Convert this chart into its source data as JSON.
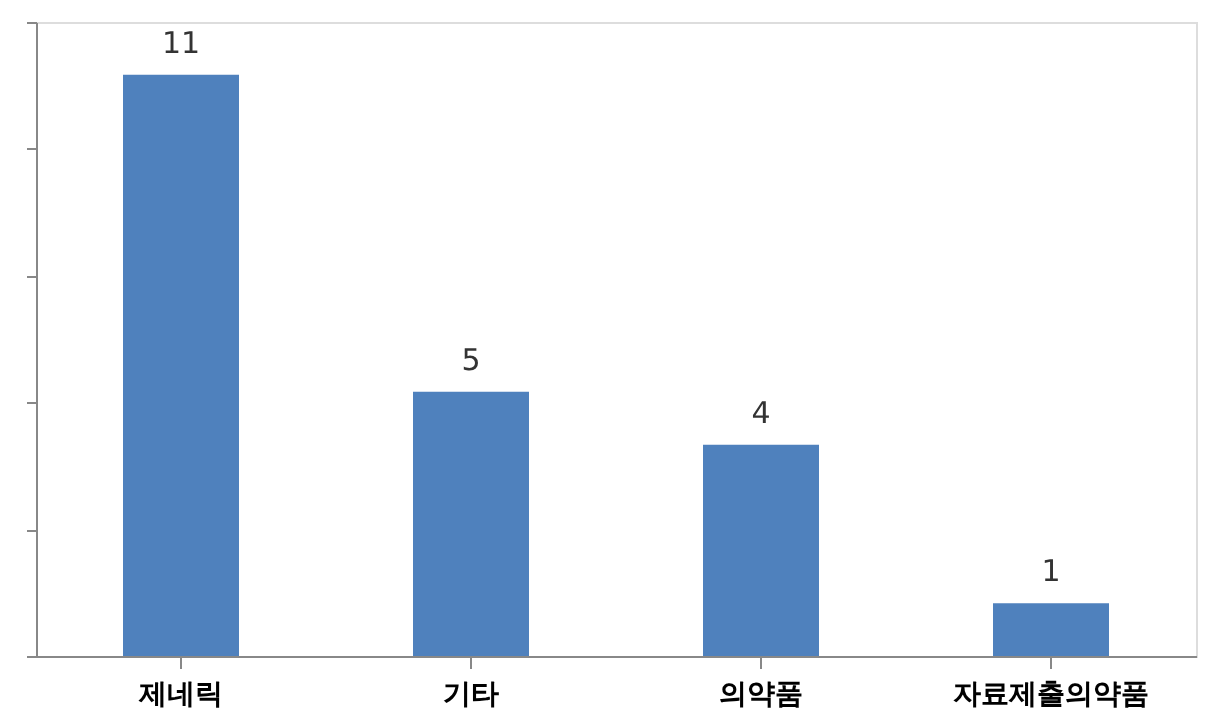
{
  "chart_data": {
    "type": "bar",
    "categories": [
      "제네릭",
      "기타",
      "의약품",
      "자료제출의약품"
    ],
    "values": [
      11,
      5,
      4,
      1
    ],
    "color": "#4f81bd",
    "data_labels": true,
    "ylim": [
      0,
      12
    ],
    "yticks": [
      {
        "value": 0,
        "label": null
      },
      {
        "value": 2.4,
        "label": null
      },
      {
        "value": 4.8,
        "label": null
      },
      {
        "value": 7.2,
        "label": null
      },
      {
        "value": 9.6,
        "label": null
      },
      {
        "value": 12,
        "label": null
      }
    ],
    "tick_labels": "x",
    "grid": false
  }
}
